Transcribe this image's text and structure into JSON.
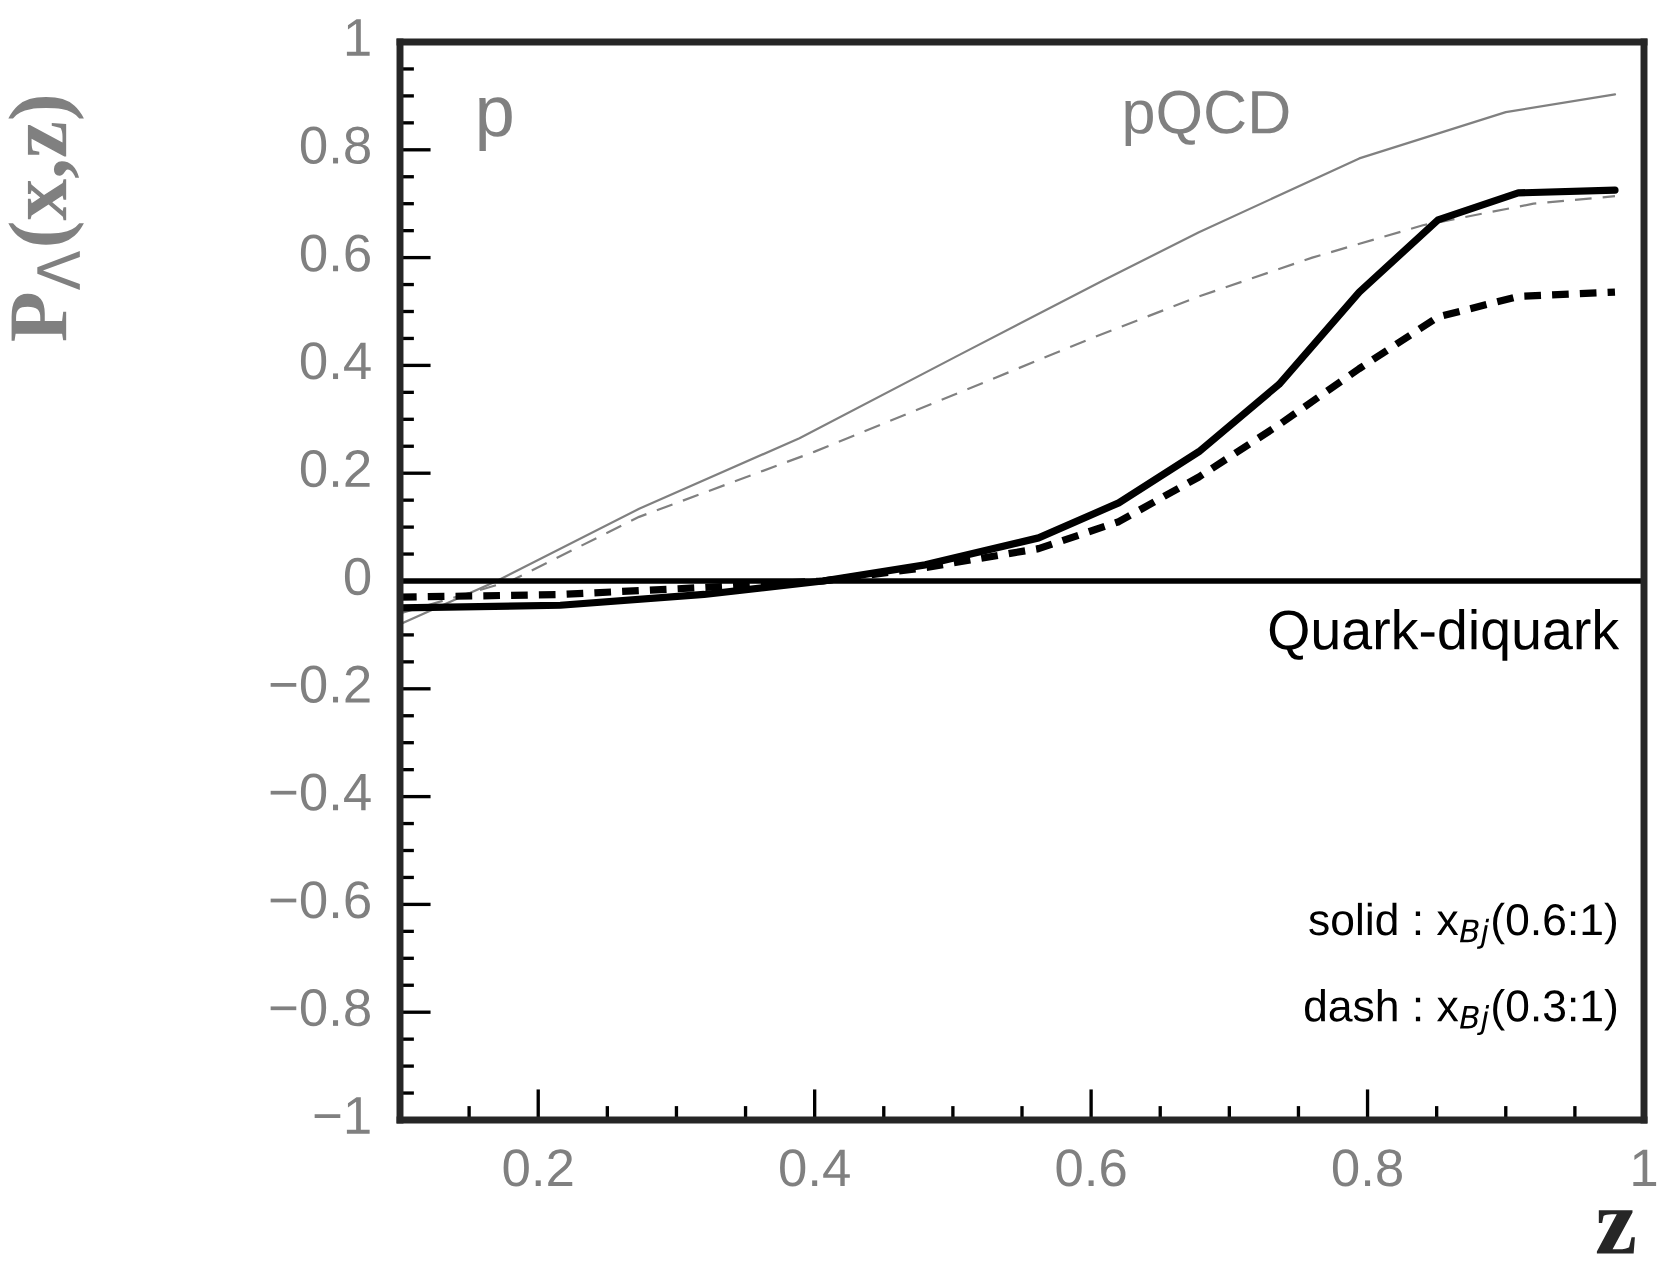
{
  "chart_data": {
    "type": "line",
    "xlabel": "z",
    "ylabel": "P$_{Λ}$(x,z)",
    "xlim": [
      0.1,
      1.0
    ],
    "xticks": [
      0.2,
      0.4,
      0.6,
      0.8,
      1
    ],
    "ylim": [
      -1,
      1
    ],
    "yticks": [
      {
        "value": -1,
        "label": "−1"
      },
      {
        "value": -0.8,
        "label": "−0.8"
      },
      {
        "value": -0.6,
        "label": "−0.6"
      },
      {
        "value": -0.4,
        "label": "−0.4"
      },
      {
        "value": -0.2,
        "label": "−0.2"
      },
      0,
      0.2,
      0.4,
      0.6,
      0.8,
      1
    ],
    "grid": false,
    "legend": false,
    "ref_lines": [
      {
        "axis": "y",
        "value": 0,
        "color": "#000000",
        "line_style": "solid"
      }
    ],
    "annotations": [
      "p",
      "pQCD",
      "Quark-diquark",
      "solid : x$_{Bj}$(0.6:1)",
      "dash : x$_{Bj}$(0.3:1)"
    ],
    "series": [
      {
        "color": "#808080",
        "line_style": "solid",
        "x": [
          0.1,
          0.17,
          0.273,
          0.389,
          0.505,
          0.609,
          0.678,
          0.794,
          0.9,
          0.979
        ],
        "values": [
          -0.08,
          0.0,
          0.134,
          0.265,
          0.42,
          0.558,
          0.647,
          0.784,
          0.87,
          0.903
        ]
      },
      {
        "color": "#808080",
        "line_style": "dashed",
        "x": [
          0.1,
          0.18,
          0.273,
          0.4,
          0.505,
          0.6,
          0.678,
          0.76,
          0.84,
          0.92,
          0.979
        ],
        "values": [
          -0.06,
          0.0,
          0.119,
          0.24,
          0.35,
          0.45,
          0.528,
          0.6,
          0.66,
          0.7,
          0.714
        ]
      },
      {
        "color": "#000000",
        "line_style": "solid",
        "x": [
          0.1,
          0.216,
          0.32,
          0.406,
          0.48,
          0.562,
          0.62,
          0.678,
          0.736,
          0.794,
          0.851,
          0.909,
          0.979
        ],
        "values": [
          -0.05,
          -0.045,
          -0.025,
          0.0,
          0.03,
          0.08,
          0.145,
          0.24,
          0.365,
          0.536,
          0.67,
          0.72,
          0.725
        ]
      },
      {
        "color": "#000000",
        "line_style": "dashed",
        "x": [
          0.1,
          0.216,
          0.32,
          0.406,
          0.48,
          0.562,
          0.62,
          0.678,
          0.736,
          0.794,
          0.851,
          0.909,
          0.979
        ],
        "values": [
          -0.03,
          -0.025,
          -0.012,
          0.0,
          0.025,
          0.06,
          0.11,
          0.193,
          0.29,
          0.394,
          0.49,
          0.528,
          0.536
        ]
      }
    ]
  }
}
